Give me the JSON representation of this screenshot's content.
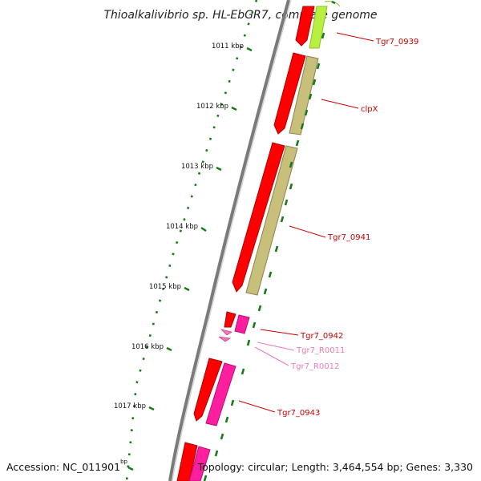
{
  "title": "Thioalkalivibrio sp. HL-EbGR7, complete genome",
  "kbp_ticks": [
    "1011 kbp",
    "1012 kbp",
    "1013 kbp",
    "1014 kbp",
    "1015 kbp",
    "1016 kbp",
    "1017 kbp"
  ],
  "genes": [
    {
      "label": "Tgr7_0939",
      "color": "#cc0000"
    },
    {
      "label": "clpX",
      "color": "#cc0000"
    },
    {
      "label": "Tgr7_0941",
      "color": "#cc0000"
    },
    {
      "label": "Tgr7_0942",
      "color": "#cc0000"
    },
    {
      "label": "Tgr7_R0011",
      "color": "#f07ab8"
    },
    {
      "label": "Tgr7_R0012",
      "color": "#f07ab8"
    },
    {
      "label": "Tgr7_0943",
      "color": "#cc0000"
    }
  ],
  "footer": {
    "accession_label": "Accession: NC_011901",
    "accession_unit": "bp",
    "topology": "Topology: circular; Length: 3,464,554 bp; Genes: 3,330"
  },
  "colors": {
    "cds": "#ff0000",
    "cds_dark": "#b00000",
    "cog_tan": "#c8bf7a",
    "cog_green": "#b8f040",
    "rna_pink": "#ff1ea0",
    "backbone": "#7a7a7a",
    "tick_green": "#1a7a1a"
  }
}
